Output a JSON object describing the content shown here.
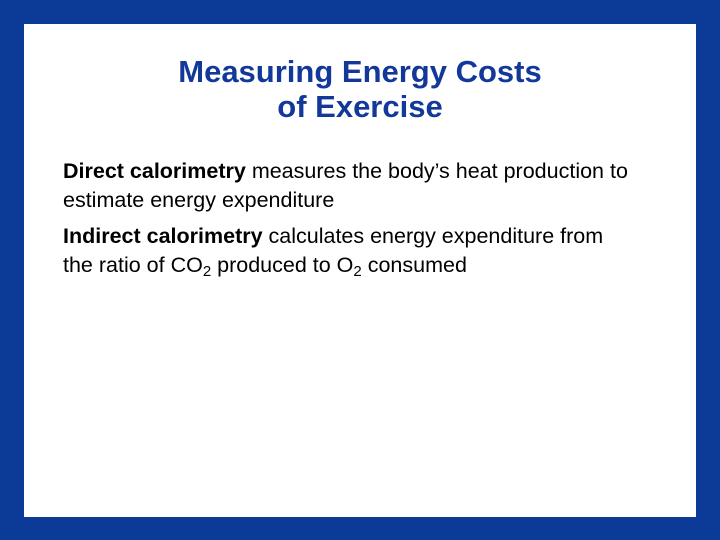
{
  "title": [
    "Measuring Energy Costs",
    "of Exercise"
  ],
  "paragraphs": [
    [
      {
        "bold": "Direct calorimetry"
      },
      {
        "text": " measures the body’s heat production to estimate energy expenditure"
      }
    ],
    [
      {
        "bold": "Indirect calorimetry"
      },
      {
        "text": " calculates energy expenditure from the ratio of CO"
      },
      {
        "sub": "2"
      },
      {
        "text": " produced to O"
      },
      {
        "sub": "2"
      },
      {
        "text": " consumed"
      }
    ]
  ]
}
